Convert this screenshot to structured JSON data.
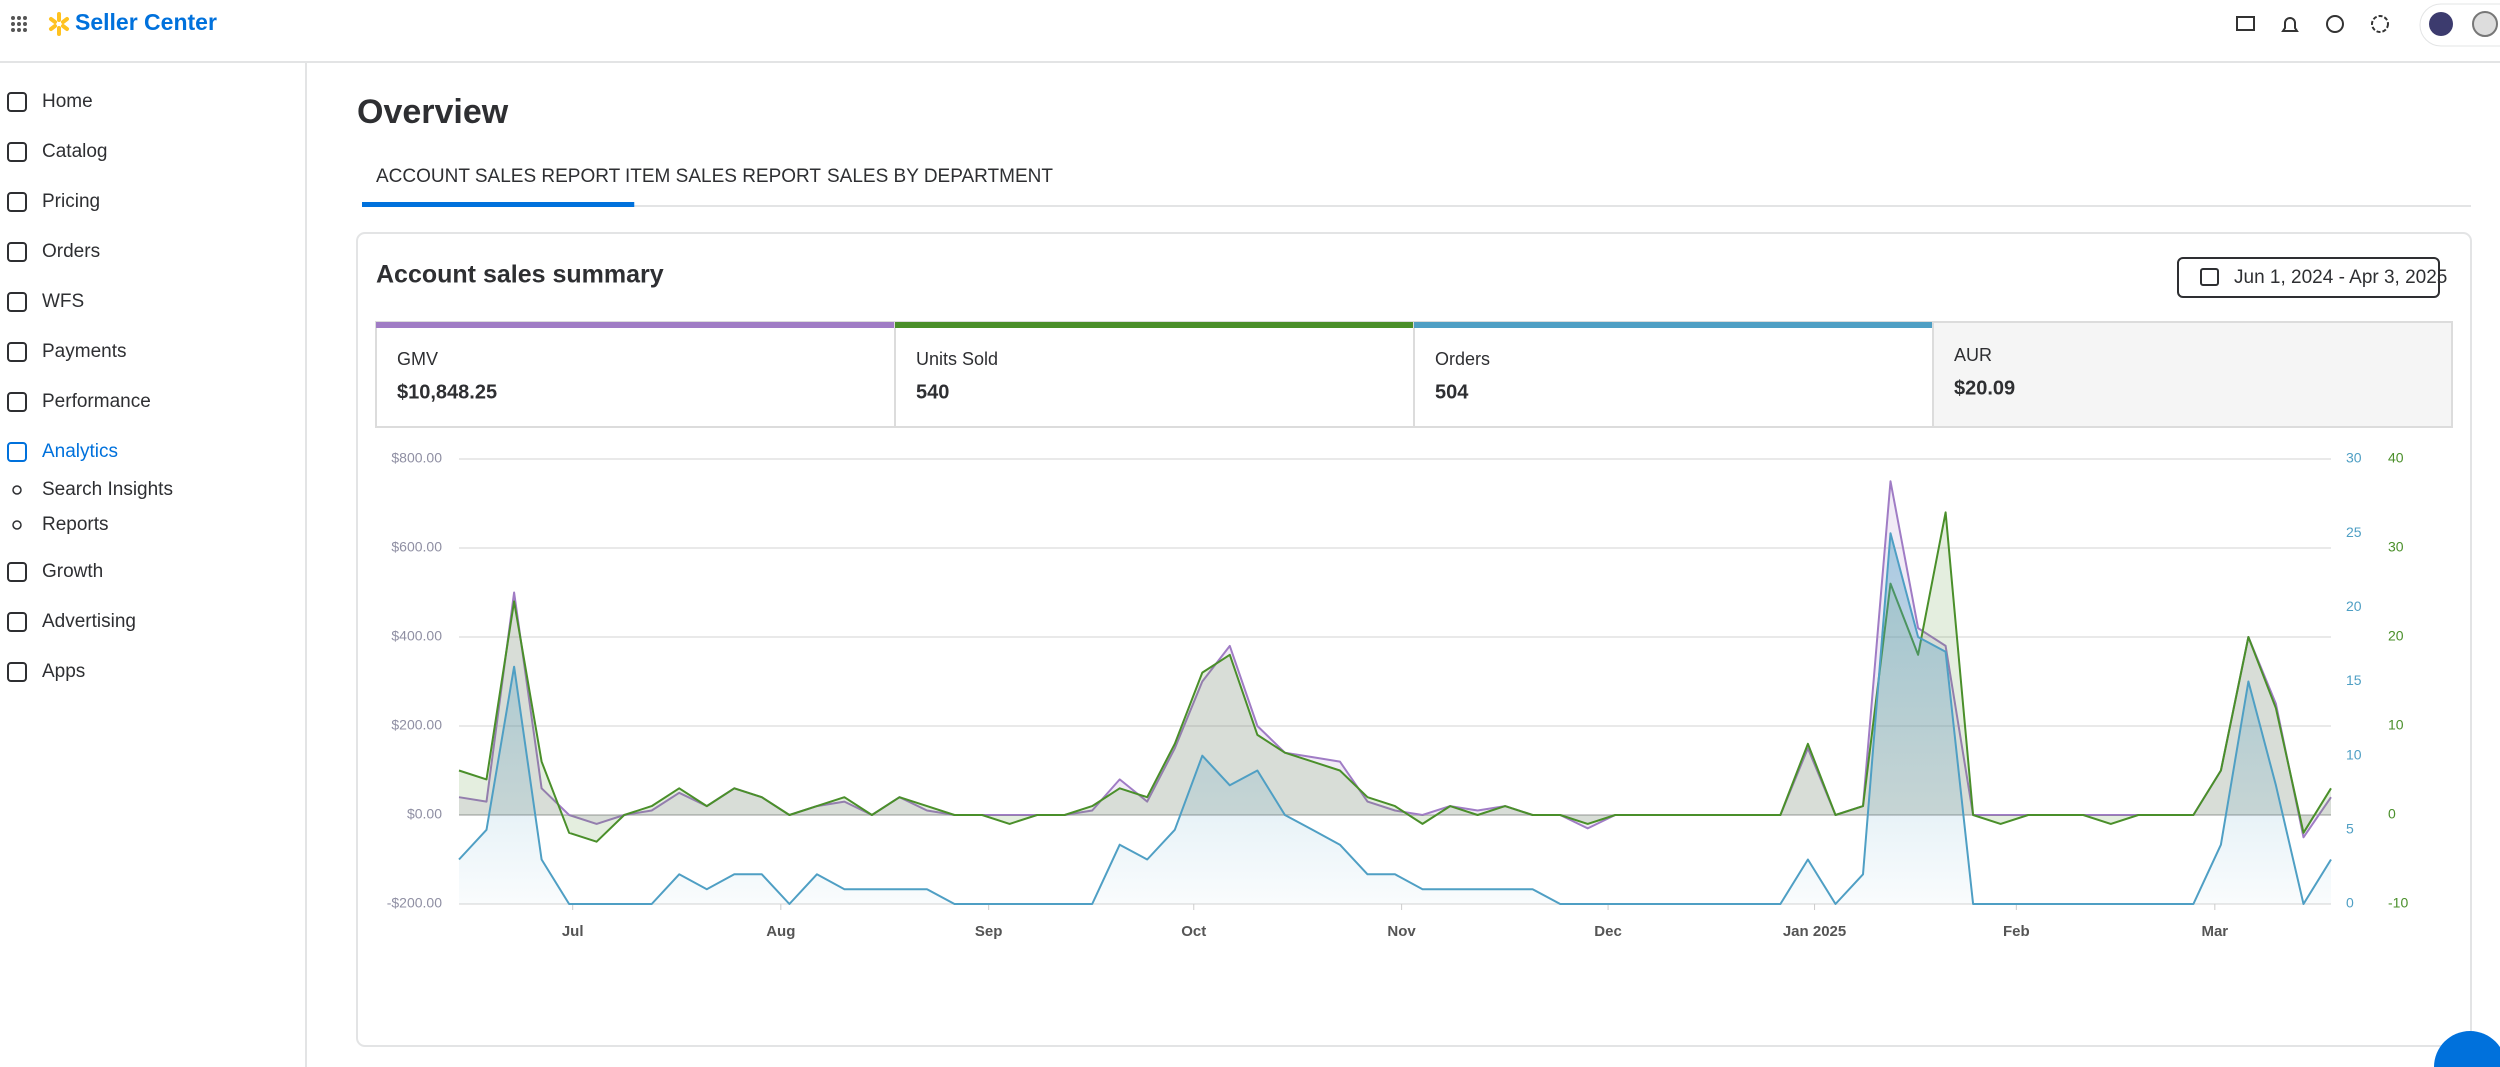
{
  "header": {
    "brand": "Seller Center"
  },
  "nav": [
    "Home",
    "Catalog",
    "Pricing",
    "Orders",
    "WFS",
    "Payments",
    "Performance",
    "Analytics",
    "Growth",
    "Advertising",
    "Apps"
  ],
  "nav_active": 7,
  "subnav": [
    "Search Insights",
    "Reports"
  ],
  "page": {
    "title": "Overview",
    "tabs": [
      "ACCOUNT SALES REPORT",
      "ITEM SALES REPORT",
      "SALES BY DEPARTMENT"
    ],
    "active_tab": 0
  },
  "summary": {
    "title": "Account sales summary",
    "date_range": "Jun 1, 2024 - Apr 3, 2025",
    "metrics": [
      {
        "label": "GMV",
        "value": "$10,848.25",
        "color": "#a07cc5"
      },
      {
        "label": "Units Sold",
        "value": "540",
        "color": "#4a8f2a"
      },
      {
        "label": "Orders",
        "value": "504",
        "color": "#4f9fc4"
      },
      {
        "label": "AUR",
        "value": "$20.09"
      }
    ]
  },
  "chart_data": {
    "type": "area",
    "xlim": [
      0,
      68
    ],
    "xticks": [
      {
        "value": 4.13,
        "label": "Jul"
      },
      {
        "value": 11.69,
        "label": "Aug"
      },
      {
        "value": 19.24,
        "label": "Sep"
      },
      {
        "value": 26.69,
        "label": "Oct"
      },
      {
        "value": 34.24,
        "label": "Nov"
      },
      {
        "value": 41.74,
        "label": "Dec"
      },
      {
        "value": 49.24,
        "label": "Jan 2025"
      },
      {
        "value": 56.57,
        "label": "Feb"
      },
      {
        "value": 63.78,
        "label": "Mar"
      }
    ],
    "ylim": [
      -200,
      800
    ],
    "yticks": [
      {
        "value": -200,
        "label": "-$200.00"
      },
      {
        "value": 0,
        "label": "$0.00"
      },
      {
        "value": 200,
        "label": "$200.00"
      },
      {
        "value": 400,
        "label": "$400.00"
      },
      {
        "value": 600,
        "label": "$600.00"
      },
      {
        "value": 800,
        "label": "$800.00"
      }
    ],
    "y2lim": [
      0,
      30
    ],
    "y2ticks": [
      0,
      5,
      10,
      15,
      20,
      25,
      30
    ],
    "y3lim": [
      -10,
      40
    ],
    "y3ticks": [
      -10,
      0,
      10,
      20,
      30,
      40
    ],
    "grid": true,
    "series": [
      {
        "name": "GMV",
        "color": "#a07cc5",
        "values": [
          40,
          30,
          500,
          60,
          0,
          -20,
          0,
          10,
          50,
          20,
          60,
          40,
          0,
          20,
          30,
          0,
          40,
          10,
          0,
          0,
          0,
          0,
          0,
          10,
          80,
          30,
          150,
          300,
          380,
          200,
          140,
          130,
          120,
          30,
          10,
          0,
          20,
          10,
          20,
          0,
          0,
          -30,
          0,
          0,
          0,
          0,
          0,
          0,
          0,
          150,
          0,
          20,
          750,
          420,
          380,
          0,
          0,
          0,
          0,
          0,
          0,
          0,
          0,
          0,
          100,
          400,
          250,
          -50,
          40
        ]
      },
      {
        "name": "Units Sold",
        "color": "#4a8f2a",
        "axis": "y3",
        "values": [
          5,
          4,
          24,
          6,
          -2,
          -3,
          0,
          1,
          3,
          1,
          3,
          2,
          0,
          1,
          2,
          0,
          2,
          1,
          0,
          0,
          -1,
          0,
          0,
          1,
          3,
          2,
          8,
          16,
          18,
          9,
          7,
          6,
          5,
          2,
          1,
          -1,
          1,
          0,
          1,
          0,
          0,
          -1,
          0,
          0,
          0,
          0,
          0,
          0,
          0,
          8,
          0,
          1,
          26,
          18,
          34,
          0,
          -1,
          0,
          0,
          0,
          -1,
          0,
          0,
          0,
          5,
          20,
          12,
          -2,
          3
        ]
      },
      {
        "name": "Orders",
        "color": "#4f9fc4",
        "axis": "y2",
        "values": [
          3,
          5,
          16,
          3,
          0,
          0,
          0,
          0,
          2,
          1,
          2,
          2,
          0,
          2,
          1,
          1,
          1,
          1,
          0,
          0,
          0,
          0,
          0,
          0,
          4,
          3,
          5,
          10,
          8,
          9,
          6,
          5,
          4,
          2,
          2,
          1,
          1,
          1,
          1,
          1,
          0,
          0,
          0,
          0,
          0,
          0,
          0,
          0,
          0,
          3,
          0,
          2,
          25,
          18,
          17,
          0,
          0,
          0,
          0,
          0,
          0,
          0,
          0,
          0,
          4,
          15,
          8,
          0,
          3
        ]
      }
    ]
  }
}
